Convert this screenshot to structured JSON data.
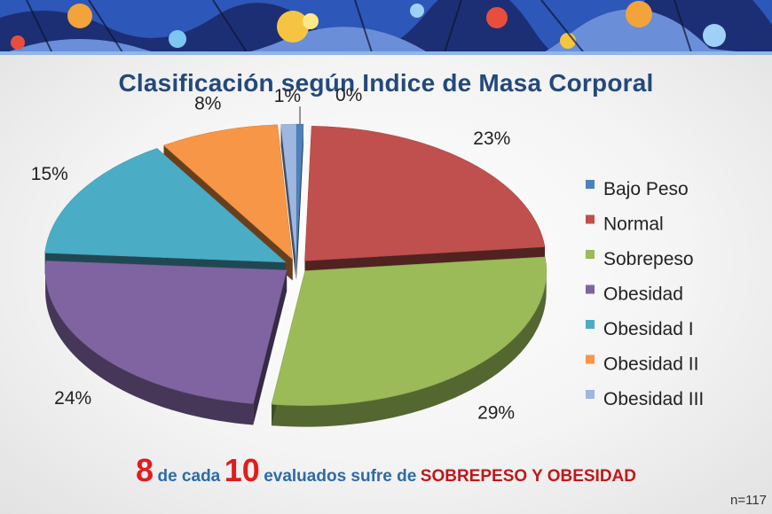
{
  "title": "Clasificación según Indice de Masa Corporal",
  "chart_data": {
    "type": "pie",
    "title": "Clasificación según Indice de Masa Corporal",
    "categories": [
      "Bajo Peso",
      "Normal",
      "Sobrepeso",
      "Obesidad",
      "Obesidad I",
      "Obesidad II",
      "Obesidad III"
    ],
    "values": [
      0,
      23,
      29,
      24,
      15,
      8,
      1
    ],
    "labels": [
      "0%",
      "23%",
      "29%",
      "24%",
      "15%",
      "8%",
      "1%"
    ],
    "colors": [
      "#4f81bd",
      "#c0504d",
      "#9bbb59",
      "#8064a2",
      "#4bacc6",
      "#f79646",
      "#9db7e0"
    ],
    "legend_position": "right",
    "style": "3d-exploded"
  },
  "footer": {
    "num1": "8",
    "text1": "de cada",
    "num2": "10",
    "text2": "evaluados sufre de",
    "highlight": "SOBREPESO Y OBESIDAD"
  },
  "sample_size": "n=117"
}
